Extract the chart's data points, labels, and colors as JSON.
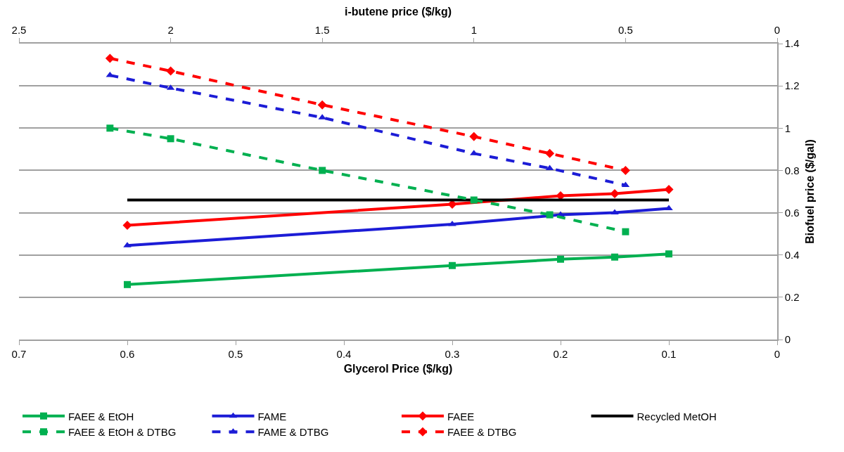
{
  "chart_data": {
    "type": "line",
    "xlabel": "Glycerol Price ($/kg)",
    "x2label": "i-butene price ($/kg)",
    "ylabel": "Biofuel price ($/gal)",
    "xlim": [
      0.7,
      0
    ],
    "xticks": [
      0.7,
      0.6,
      0.5,
      0.4,
      0.3,
      0.2,
      0.1,
      0
    ],
    "x2lim": [
      2.5,
      0
    ],
    "x2ticks": [
      2.5,
      2,
      1.5,
      1,
      0.5,
      0
    ],
    "ylim": [
      0,
      1.4
    ],
    "yticks": [
      0,
      0.2,
      0.4,
      0.6,
      0.8,
      1,
      1.2,
      1.4
    ],
    "grid": "y",
    "legend": "bottom",
    "series": [
      {
        "name": "FAEE & EtOH",
        "color": "#00b050",
        "marker": "square",
        "line_style": "solid",
        "x": [
          0.6,
          0.3,
          0.2,
          0.15,
          0.1
        ],
        "values": [
          0.26,
          0.35,
          0.38,
          0.39,
          0.405
        ]
      },
      {
        "name": "FAME",
        "color": "#1c1cd6",
        "marker": "triangle",
        "line_style": "solid",
        "x": [
          0.6,
          0.3,
          0.2,
          0.15,
          0.1
        ],
        "values": [
          0.445,
          0.545,
          0.59,
          0.6,
          0.62
        ]
      },
      {
        "name": "FAEE",
        "color": "#ff0000",
        "marker": "diamond",
        "line_style": "solid",
        "x": [
          0.6,
          0.3,
          0.2,
          0.15,
          0.1
        ],
        "values": [
          0.54,
          0.64,
          0.68,
          0.69,
          0.71
        ]
      },
      {
        "name": "Recycled MetOH",
        "color": "#000000",
        "marker": "none",
        "line_style": "solid",
        "x": [
          0.6,
          0.1
        ],
        "values": [
          0.66,
          0.66
        ]
      },
      {
        "name": "FAEE & EtOH & DTBG",
        "color": "#00b050",
        "marker": "square",
        "line_style": "dashed",
        "axis": "x2",
        "x": [
          2.2,
          2,
          1.5,
          1,
          0.75,
          0.5
        ],
        "values": [
          1.0,
          0.95,
          0.8,
          0.66,
          0.59,
          0.51
        ]
      },
      {
        "name": "FAME & DTBG",
        "color": "#1c1cd6",
        "marker": "triangle",
        "line_style": "dashed",
        "axis": "x2",
        "x": [
          2.2,
          2,
          1.5,
          1,
          0.75,
          0.5
        ],
        "values": [
          1.25,
          1.19,
          1.05,
          0.88,
          0.81,
          0.73
        ]
      },
      {
        "name": "FAEE & DTBG",
        "color": "#ff0000",
        "marker": "diamond",
        "line_style": "dashed",
        "axis": "x2",
        "x": [
          2.2,
          2,
          1.5,
          1,
          0.75,
          0.5
        ],
        "values": [
          1.33,
          1.27,
          1.11,
          0.96,
          0.88,
          0.8
        ]
      }
    ]
  }
}
